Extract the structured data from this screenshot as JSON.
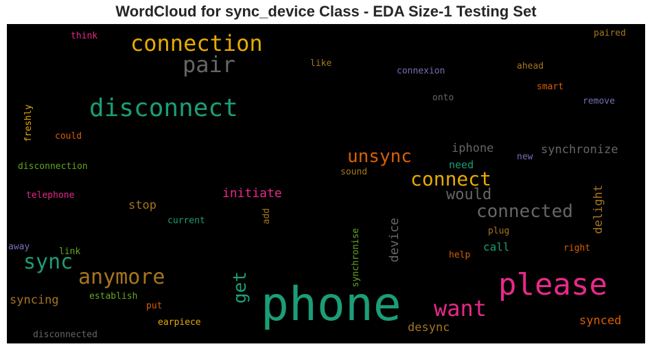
{
  "chart_data": {
    "type": "wordcloud",
    "title": "WordCloud for sync_device Class - EDA Size-1 Testing Set",
    "background": "#000000",
    "words": [
      {
        "text": "phone",
        "color": "#1b9e77"
      },
      {
        "text": "please",
        "color": "#e7298a"
      },
      {
        "text": "disconnect",
        "color": "#1b9e77"
      },
      {
        "text": "connection",
        "color": "#e6ab02"
      },
      {
        "text": "pair",
        "color": "#666666"
      },
      {
        "text": "sync",
        "color": "#1b9e77"
      },
      {
        "text": "anymore",
        "color": "#a6761d"
      },
      {
        "text": "want",
        "color": "#e7298a"
      },
      {
        "text": "connect",
        "color": "#e6ab02"
      },
      {
        "text": "connected",
        "color": "#666666"
      },
      {
        "text": "unsync",
        "color": "#d95f02"
      },
      {
        "text": "get",
        "color": "#1b9e77"
      },
      {
        "text": "would",
        "color": "#666666"
      },
      {
        "text": "synchronize",
        "color": "#666666"
      },
      {
        "text": "iphone",
        "color": "#666666"
      },
      {
        "text": "initiate",
        "color": "#e7298a"
      },
      {
        "text": "device",
        "color": "#666666"
      },
      {
        "text": "delight",
        "color": "#a6761d"
      },
      {
        "text": "synced",
        "color": "#d95f02"
      },
      {
        "text": "desync",
        "color": "#a6761d"
      },
      {
        "text": "stop",
        "color": "#a6761d"
      },
      {
        "text": "need",
        "color": "#1b9e77"
      },
      {
        "text": "syncing",
        "color": "#a6761d"
      },
      {
        "text": "call",
        "color": "#1b9e77"
      },
      {
        "text": "disconnection",
        "color": "#66a61e"
      },
      {
        "text": "telephone",
        "color": "#e7298a"
      },
      {
        "text": "freshly",
        "color": "#e6ab02"
      },
      {
        "text": "could",
        "color": "#d95f02"
      },
      {
        "text": "think",
        "color": "#e7298a"
      },
      {
        "text": "like",
        "color": "#a6761d"
      },
      {
        "text": "connexion",
        "color": "#7570b3"
      },
      {
        "text": "onto",
        "color": "#666666"
      },
      {
        "text": "ahead",
        "color": "#a6761d"
      },
      {
        "text": "smart",
        "color": "#d95f02"
      },
      {
        "text": "remove",
        "color": "#7570b3"
      },
      {
        "text": "paired",
        "color": "#a6761d"
      },
      {
        "text": "new",
        "color": "#7570b3"
      },
      {
        "text": "sound",
        "color": "#a6761d"
      },
      {
        "text": "current",
        "color": "#1b9e77"
      },
      {
        "text": "add",
        "color": "#a6761d"
      },
      {
        "text": "synchronise",
        "color": "#66a61e"
      },
      {
        "text": "plug",
        "color": "#a6761d"
      },
      {
        "text": "right",
        "color": "#d95f02"
      },
      {
        "text": "help",
        "color": "#d95f02"
      },
      {
        "text": "link",
        "color": "#66a61e"
      },
      {
        "text": "away",
        "color": "#7570b3"
      },
      {
        "text": "establish",
        "color": "#66a61e"
      },
      {
        "text": "put",
        "color": "#d95f02"
      },
      {
        "text": "earpiece",
        "color": "#e6ab02"
      },
      {
        "text": "disconnected",
        "color": "#666666"
      }
    ]
  }
}
